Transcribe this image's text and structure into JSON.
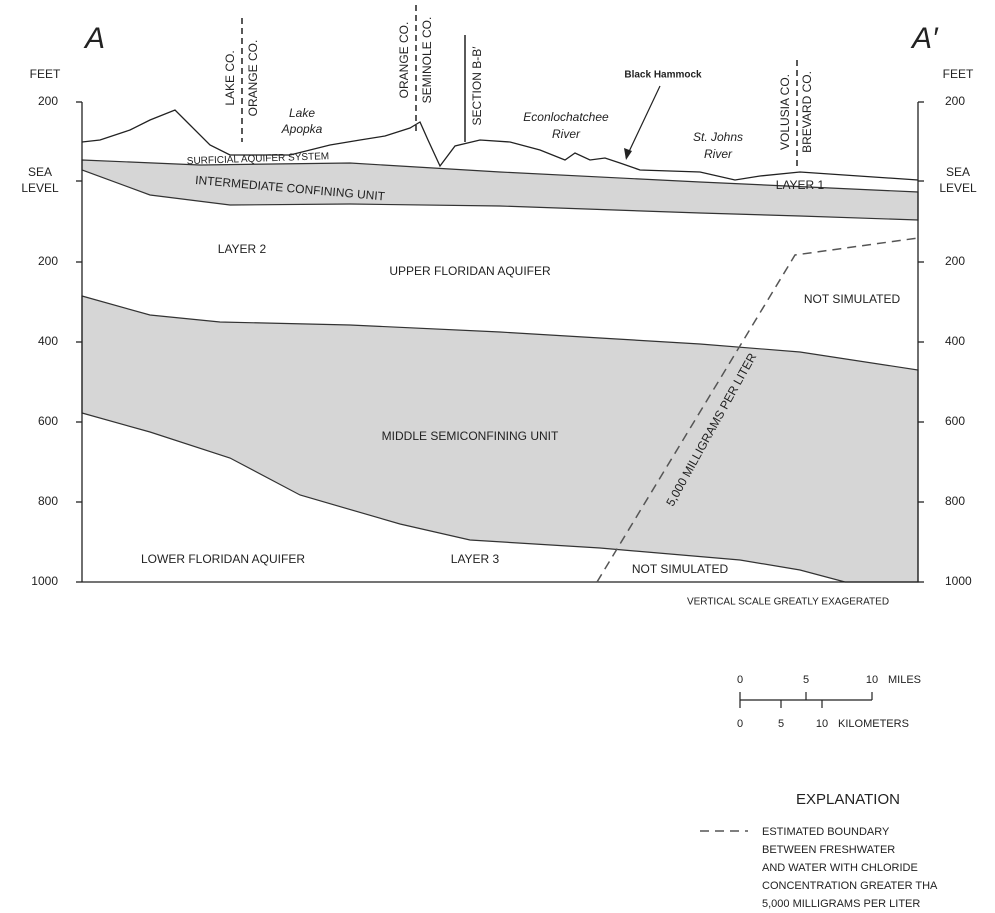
{
  "section": {
    "start": "A",
    "end": "A′"
  },
  "depth_axis": {
    "unit": "FEET",
    "ticks": [
      "200",
      [
        "SEA",
        "LEVEL"
      ],
      "200",
      "400",
      "600",
      "800",
      "1000"
    ]
  },
  "boundaries": [
    [
      "LAKE CO.",
      "ORANGE CO."
    ],
    [
      "ORANGE CO.",
      "SEMINOLE CO."
    ],
    [
      "SECTION B-B′"
    ],
    [
      "VOLUSIA CO.",
      "BREVARD CO."
    ]
  ],
  "features": {
    "lake": [
      "Lake",
      "Apopka"
    ],
    "hammock": "Black Hammock",
    "econ_river": [
      "Econlochatchee",
      "River"
    ],
    "johns_river": [
      "St. Johns",
      "River"
    ]
  },
  "units": {
    "surficial": "SURFICIAL AQUIFER SYSTEM",
    "intermediate": "INTERMEDIATE CONFINING UNIT",
    "layer1": "LAYER 1",
    "layer2": "LAYER 2",
    "upper": "UPPER FLORIDAN AQUIFER",
    "not_simulated_upper": "NOT SIMULATED",
    "middle": "MIDDLE SEMICONFINING UNIT",
    "boundary": "5,000 MILLIGRAMS PER LITER",
    "lower": "LOWER FLORIDAN AQUIFER",
    "layer3": "LAYER 3",
    "not_simulated_lower": "NOT SIMULATED"
  },
  "note": "VERTICAL SCALE GREATLY EXAGERATED",
  "scale": {
    "miles": {
      "ticks": [
        "0",
        "5",
        "10"
      ],
      "unit": "MILES"
    },
    "kilometers": {
      "ticks": [
        "0",
        "5",
        "10"
      ],
      "unit": "KILOMETERS"
    }
  },
  "explanation": {
    "title": "EXPLANATION",
    "lines": [
      "ESTIMATED BOUNDARY",
      "BETWEEN FRESHWATER",
      "AND WATER WITH CHLORIDE",
      "CONCENTRATION GREATER THA",
      "5,000 MILLIGRAMS PER LITER"
    ]
  }
}
